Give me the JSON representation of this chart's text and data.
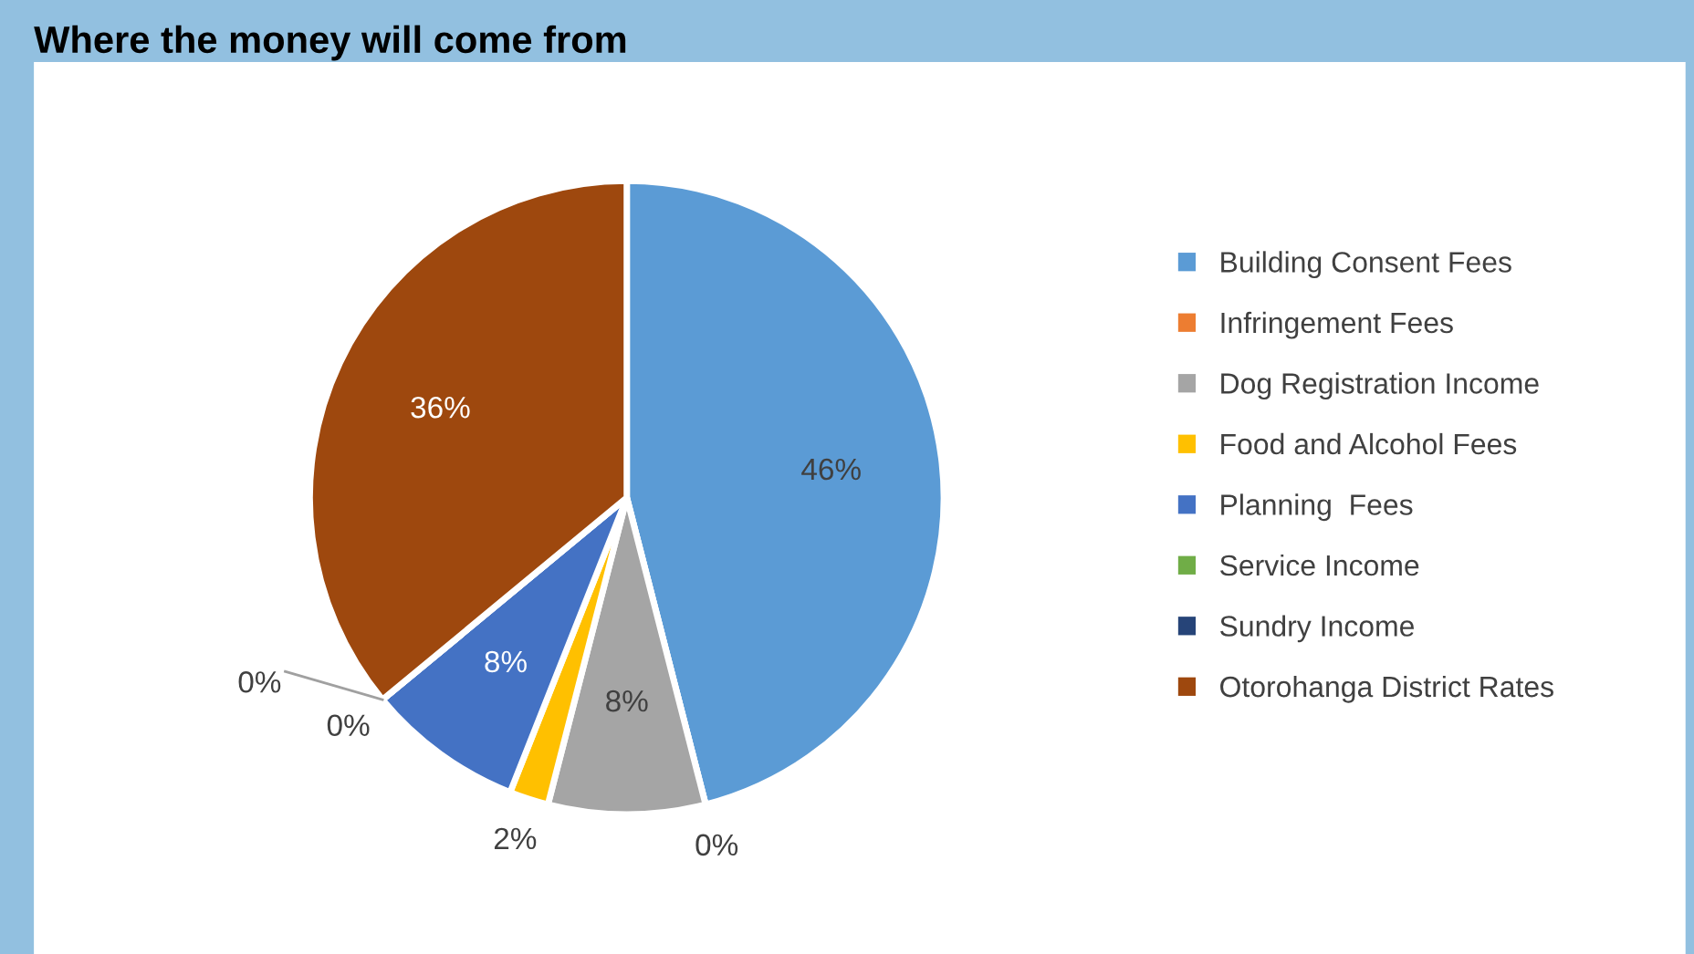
{
  "chart_data": {
    "type": "pie",
    "title": "Where the money will come from",
    "categories": [
      "Building Consent Fees",
      "Infringement Fees",
      "Dog Registration Income",
      "Food and Alcohol Fees",
      "Planning  Fees",
      "Service Income",
      "Sundry Income",
      "Otorohanga District Rates"
    ],
    "values": [
      46,
      0,
      8,
      2,
      8,
      0,
      0,
      36
    ],
    "value_labels": [
      "46%",
      "0%",
      "8%",
      "2%",
      "8%",
      "0%",
      "0%",
      "36%"
    ],
    "colors": [
      "#5b9bd5",
      "#ed7d31",
      "#a5a5a5",
      "#ffc000",
      "#4472c4",
      "#70ad47",
      "#264478",
      "#9e480e"
    ],
    "legend": "right"
  }
}
